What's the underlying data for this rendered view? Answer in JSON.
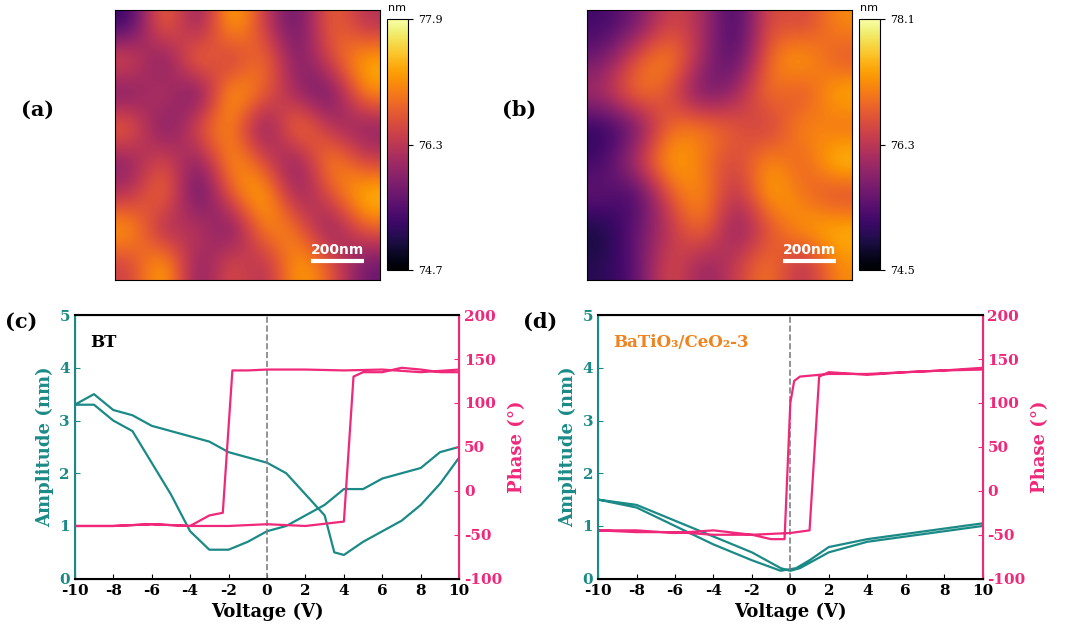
{
  "chart_data": [
    {
      "type": "heatmap",
      "label": "(a)",
      "xlim": [
        0,
        1000
      ],
      "ylim": [
        0,
        1000
      ],
      "tick_labels": false,
      "cells": [
        [
          75.2,
          77.2,
          75.6,
          77.6,
          76.4,
          75.4,
          77.0,
          76.2
        ],
        [
          76.8,
          75.4,
          77.4,
          76.0,
          77.2,
          75.6,
          76.6,
          77.4
        ],
        [
          75.6,
          76.6,
          75.2,
          77.6,
          76.8,
          76.0,
          75.4,
          77.2
        ],
        [
          77.0,
          75.4,
          76.8,
          77.2,
          75.4,
          77.4,
          76.2,
          75.8
        ],
        [
          75.8,
          76.8,
          75.6,
          77.4,
          76.6,
          75.6,
          77.4,
          76.4
        ],
        [
          76.2,
          77.2,
          75.2,
          76.8,
          77.6,
          75.8,
          76.6,
          77.6
        ],
        [
          77.4,
          75.8,
          76.6,
          75.4,
          77.2,
          77.0,
          75.6,
          76.8
        ],
        [
          76.4,
          77.6,
          75.6,
          76.8,
          76.0,
          77.4,
          76.8,
          75.6
        ]
      ],
      "colorbar": {
        "title": "nm",
        "range": [
          74.7,
          77.9
        ],
        "ticks": [
          74.7,
          76.3,
          77.9
        ]
      },
      "scale_bar": {
        "length": 200,
        "label": "200nm"
      }
    },
    {
      "type": "heatmap",
      "label": "(b)",
      "xlim": [
        0,
        1000
      ],
      "ylim": [
        0,
        1000
      ],
      "tick_labels": false,
      "cells": [
        [
          75.2,
          75.6,
          76.6,
          76.2,
          75.0,
          76.8,
          76.4,
          77.2
        ],
        [
          75.6,
          76.8,
          77.4,
          76.0,
          75.2,
          77.0,
          77.6,
          76.6
        ],
        [
          76.2,
          77.2,
          76.6,
          75.4,
          76.0,
          77.2,
          76.4,
          77.6
        ],
        [
          75.0,
          75.4,
          77.0,
          77.2,
          76.8,
          76.2,
          77.4,
          76.8
        ],
        [
          75.2,
          76.4,
          77.6,
          77.0,
          76.4,
          77.4,
          76.6,
          77.8
        ],
        [
          75.6,
          75.0,
          76.8,
          77.4,
          76.0,
          77.6,
          77.0,
          76.4
        ],
        [
          74.8,
          75.6,
          76.2,
          77.2,
          75.6,
          76.6,
          77.4,
          77.6
        ],
        [
          75.0,
          75.4,
          76.8,
          75.8,
          76.4,
          77.2,
          76.0,
          77.2
        ]
      ],
      "colorbar": {
        "title": "nm",
        "range": [
          74.5,
          78.1
        ],
        "ticks": [
          74.5,
          76.3,
          78.1
        ]
      },
      "scale_bar": {
        "length": 200,
        "label": "200nm"
      }
    },
    {
      "type": "line",
      "label": "(c)",
      "annotation": {
        "text": "BT",
        "color": "#000000"
      },
      "xlabel": "Voltage (V)",
      "ylabel": "Amplitude (nm)",
      "y2label": "Phase (°)",
      "xlim": [
        -10,
        10
      ],
      "xticks": [
        -10,
        -8,
        -6,
        -4,
        -2,
        0,
        2,
        4,
        6,
        8,
        10
      ],
      "ylim": [
        0,
        5
      ],
      "yticks": [
        0,
        1,
        2,
        3,
        4,
        5
      ],
      "y2lim": [
        -100,
        200
      ],
      "y2ticks": [
        -100,
        -50,
        0,
        50,
        100,
        150,
        200
      ],
      "vline_x": 0,
      "series": [
        {
          "color": "#1b8a86",
          "axis": "y",
          "x": [
            -10,
            -9,
            -8,
            -7,
            -6,
            -5,
            -4,
            -3,
            -2,
            -1,
            0,
            1,
            2,
            3,
            3.5,
            4,
            5,
            6,
            7,
            8,
            9,
            10,
            10,
            9,
            8,
            7,
            6,
            5,
            4,
            3,
            2,
            1,
            0,
            -1,
            -2,
            -3,
            -4,
            -5,
            -6,
            -7,
            -8,
            -9,
            -10
          ],
          "values": [
            3.3,
            3.5,
            3.2,
            3.1,
            2.9,
            2.8,
            2.7,
            2.6,
            2.4,
            2.3,
            2.2,
            2.0,
            1.6,
            1.2,
            0.5,
            0.45,
            0.7,
            0.9,
            1.1,
            1.4,
            1.8,
            2.3,
            2.5,
            2.4,
            2.1,
            2.0,
            1.9,
            1.7,
            1.7,
            1.4,
            1.2,
            1.0,
            0.9,
            0.7,
            0.55,
            0.55,
            0.9,
            1.6,
            2.2,
            2.8,
            3.0,
            3.3,
            3.3
          ]
        },
        {
          "color": "#f0287a",
          "axis": "y2",
          "x": [
            -10,
            -8,
            -6,
            -4,
            -2,
            0,
            2,
            4,
            4.5,
            5,
            6,
            7,
            8,
            9,
            10,
            10,
            8,
            6,
            4,
            2,
            0,
            -1,
            -1.8,
            -2.3,
            -3,
            -4,
            -6,
            -8,
            -10
          ],
          "values": [
            -40,
            -40,
            -38,
            -40,
            -40,
            -38,
            -40,
            -35,
            130,
            135,
            135,
            140,
            138,
            135,
            135,
            138,
            135,
            138,
            137,
            138,
            138,
            137,
            137,
            -25,
            -28,
            -40,
            -38,
            -40,
            -40
          ]
        }
      ]
    },
    {
      "type": "line",
      "label": "(d)",
      "annotation": {
        "text": "BaTiO₃/CeO₂-3",
        "color": "#f0831e"
      },
      "xlabel": "Voltage (V)",
      "ylabel": "Amplitude (nm)",
      "y2label": "Phase (°)",
      "xlim": [
        -10,
        10
      ],
      "xticks": [
        -10,
        -8,
        -6,
        -4,
        -2,
        0,
        2,
        4,
        6,
        8,
        10
      ],
      "ylim": [
        0,
        5
      ],
      "yticks": [
        0,
        1,
        2,
        3,
        4,
        5
      ],
      "y2lim": [
        -100,
        200
      ],
      "y2ticks": [
        -100,
        -50,
        0,
        50,
        100,
        150,
        200
      ],
      "vline_x": 0,
      "series": [
        {
          "color": "#1b8a86",
          "axis": "y",
          "x": [
            -10,
            -8,
            -6,
            -4,
            -2,
            -0.5,
            0,
            0.5,
            2,
            4,
            6,
            8,
            10,
            10,
            8,
            6,
            4,
            2,
            1,
            0.3,
            -0.5,
            -2,
            -4,
            -6,
            -8,
            -10
          ],
          "values": [
            1.5,
            1.4,
            1.1,
            0.8,
            0.5,
            0.2,
            0.15,
            0.2,
            0.5,
            0.7,
            0.8,
            0.9,
            1.0,
            1.05,
            0.95,
            0.85,
            0.75,
            0.6,
            0.35,
            0.2,
            0.15,
            0.35,
            0.65,
            1.0,
            1.35,
            1.5
          ]
        },
        {
          "color": "#f0287a",
          "axis": "y2",
          "x": [
            -10,
            -8,
            -6,
            -4,
            -2,
            0,
            1,
            1.5,
            2,
            4,
            6,
            8,
            10,
            10,
            8,
            6,
            4,
            2,
            0.5,
            0.2,
            0,
            -0.3,
            -1,
            -2,
            -4,
            -6,
            -8,
            -10
          ],
          "values": [
            -45,
            -45,
            -48,
            -45,
            -50,
            -48,
            -45,
            130,
            135,
            132,
            135,
            137,
            140,
            138,
            137,
            135,
            133,
            133,
            130,
            125,
            100,
            -55,
            -55,
            -50,
            -50,
            -47,
            -47,
            -45
          ]
        }
      ]
    }
  ]
}
